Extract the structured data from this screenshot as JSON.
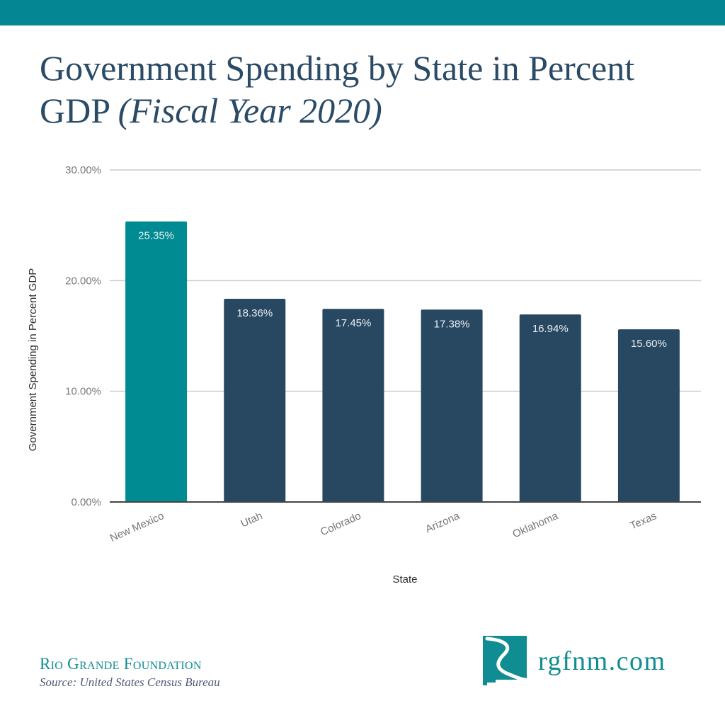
{
  "header": {
    "title_main": "Government Spending by State in Percent GDP ",
    "title_italic": "(Fiscal Year 2020)"
  },
  "colors": {
    "top_bar": "#058793",
    "highlight_bar": "#008b92",
    "bar": "#284862",
    "title": "#2a4a66",
    "brand": "#108d92"
  },
  "chart_data": {
    "type": "bar",
    "title": "Government Spending by State in Percent GDP (Fiscal Year 2020)",
    "xlabel": "State",
    "ylabel": "Government Spending in Percent GDP",
    "categories": [
      "New Mexico",
      "Utah",
      "Colorado",
      "Arizona",
      "Oklahoma",
      "Texas"
    ],
    "values": [
      25.35,
      18.36,
      17.45,
      17.38,
      16.94,
      15.6
    ],
    "value_labels": [
      "25.35%",
      "18.36%",
      "17.45%",
      "17.38%",
      "16.94%",
      "15.60%"
    ],
    "highlight_index": 0,
    "ylim": [
      0,
      30
    ],
    "yticks": [
      0,
      10,
      20,
      30
    ],
    "ytick_labels": [
      "0.00%",
      "10.00%",
      "20.00%",
      "30.00%"
    ],
    "grid": true,
    "legend": "none"
  },
  "footer": {
    "organization": "Rio Grande Foundation",
    "source": "Source: United States Census Bureau",
    "website": "rgfnm.com",
    "logo_icon": "new-mexico-river-logo"
  }
}
